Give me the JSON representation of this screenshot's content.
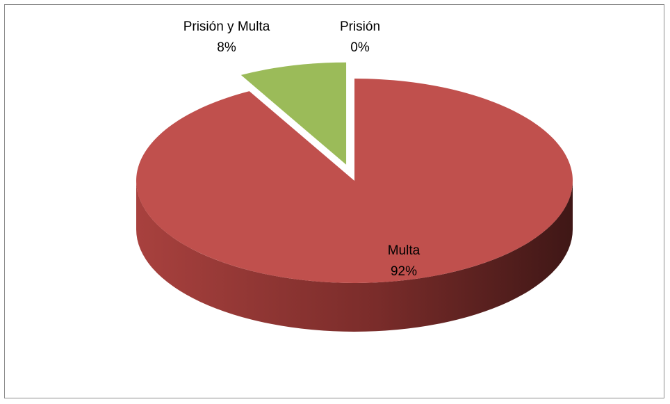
{
  "chart_data": {
    "type": "pie",
    "title": "",
    "style": "3d-exploded",
    "slices": [
      {
        "name": "Multa",
        "value": 92,
        "label": "92%",
        "color": "#c0504d"
      },
      {
        "name": "Prisión y Multa",
        "value": 8,
        "label": "8%",
        "color": "#9bbb59"
      },
      {
        "name": "Prisión",
        "value": 0,
        "label": "0%",
        "color": "#4f81bd"
      }
    ],
    "legend": "none",
    "data_labels": "category-and-percent"
  }
}
